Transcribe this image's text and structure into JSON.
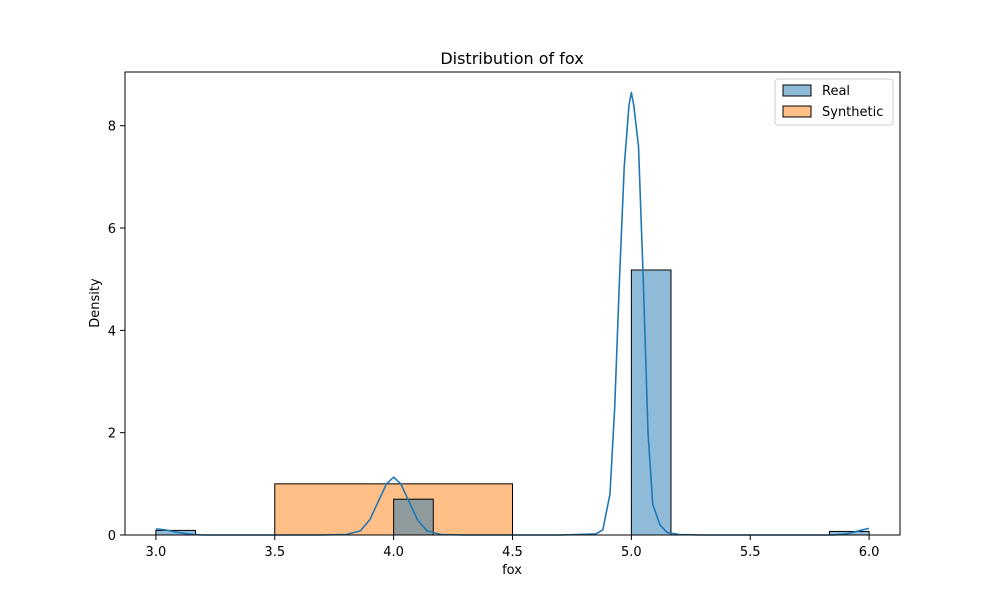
{
  "chart_data": {
    "type": "bar",
    "title": "Distribution of fox",
    "xlabel": "fox",
    "ylabel": "Density",
    "xlim": [
      2.87,
      6.13
    ],
    "ylim": [
      0,
      9.05
    ],
    "xticks": [
      3.0,
      3.5,
      4.0,
      4.5,
      5.0,
      5.5,
      6.0
    ],
    "xtick_labels": [
      "3.0",
      "3.5",
      "4.0",
      "4.5",
      "5.0",
      "5.5",
      "6.0"
    ],
    "yticks": [
      0,
      2,
      4,
      6,
      8
    ],
    "ytick_labels": [
      "0",
      "2",
      "4",
      "6",
      "8"
    ],
    "grid": false,
    "legend_position": "top-right",
    "series": [
      {
        "name": "Real",
        "kind": "histogram",
        "color": "#1f77b4",
        "bins": [
          {
            "x0": 3.0,
            "x1": 3.1667,
            "density": 0.09
          },
          {
            "x0": 4.0,
            "x1": 4.1667,
            "density": 0.7
          },
          {
            "x0": 5.0,
            "x1": 5.1667,
            "density": 5.18
          },
          {
            "x0": 5.8333,
            "x1": 6.0,
            "density": 0.07
          }
        ],
        "kde": {
          "x": [
            3.0,
            3.04,
            3.08,
            3.12,
            3.16,
            3.2,
            3.3,
            3.5,
            3.7,
            3.8,
            3.86,
            3.9,
            3.94,
            3.97,
            4.0,
            4.03,
            4.06,
            4.1,
            4.14,
            4.2,
            4.3,
            4.5,
            4.7,
            4.85,
            4.88,
            4.91,
            4.93,
            4.95,
            4.97,
            4.99,
            5.0,
            5.01,
            5.03,
            5.05,
            5.07,
            5.09,
            5.12,
            5.15,
            5.2,
            5.3,
            5.5,
            5.7,
            5.85,
            5.9,
            5.94,
            5.97,
            6.0
          ],
          "y": [
            0.12,
            0.1,
            0.06,
            0.03,
            0.01,
            0.0,
            0.0,
            0.0,
            0.0,
            0.01,
            0.08,
            0.3,
            0.7,
            1.0,
            1.13,
            1.0,
            0.7,
            0.3,
            0.08,
            0.01,
            0.0,
            0.0,
            0.0,
            0.02,
            0.1,
            0.8,
            2.5,
            5.0,
            7.2,
            8.4,
            8.65,
            8.4,
            7.6,
            5.0,
            2.0,
            0.6,
            0.2,
            0.05,
            0.01,
            0.0,
            0.0,
            0.0,
            0.0,
            0.02,
            0.06,
            0.1,
            0.13
          ]
        }
      },
      {
        "name": "Synthetic",
        "kind": "histogram",
        "color": "#ff7f0e",
        "bins": [
          {
            "x0": 3.5,
            "x1": 4.5,
            "density": 1.0
          }
        ]
      }
    ]
  }
}
